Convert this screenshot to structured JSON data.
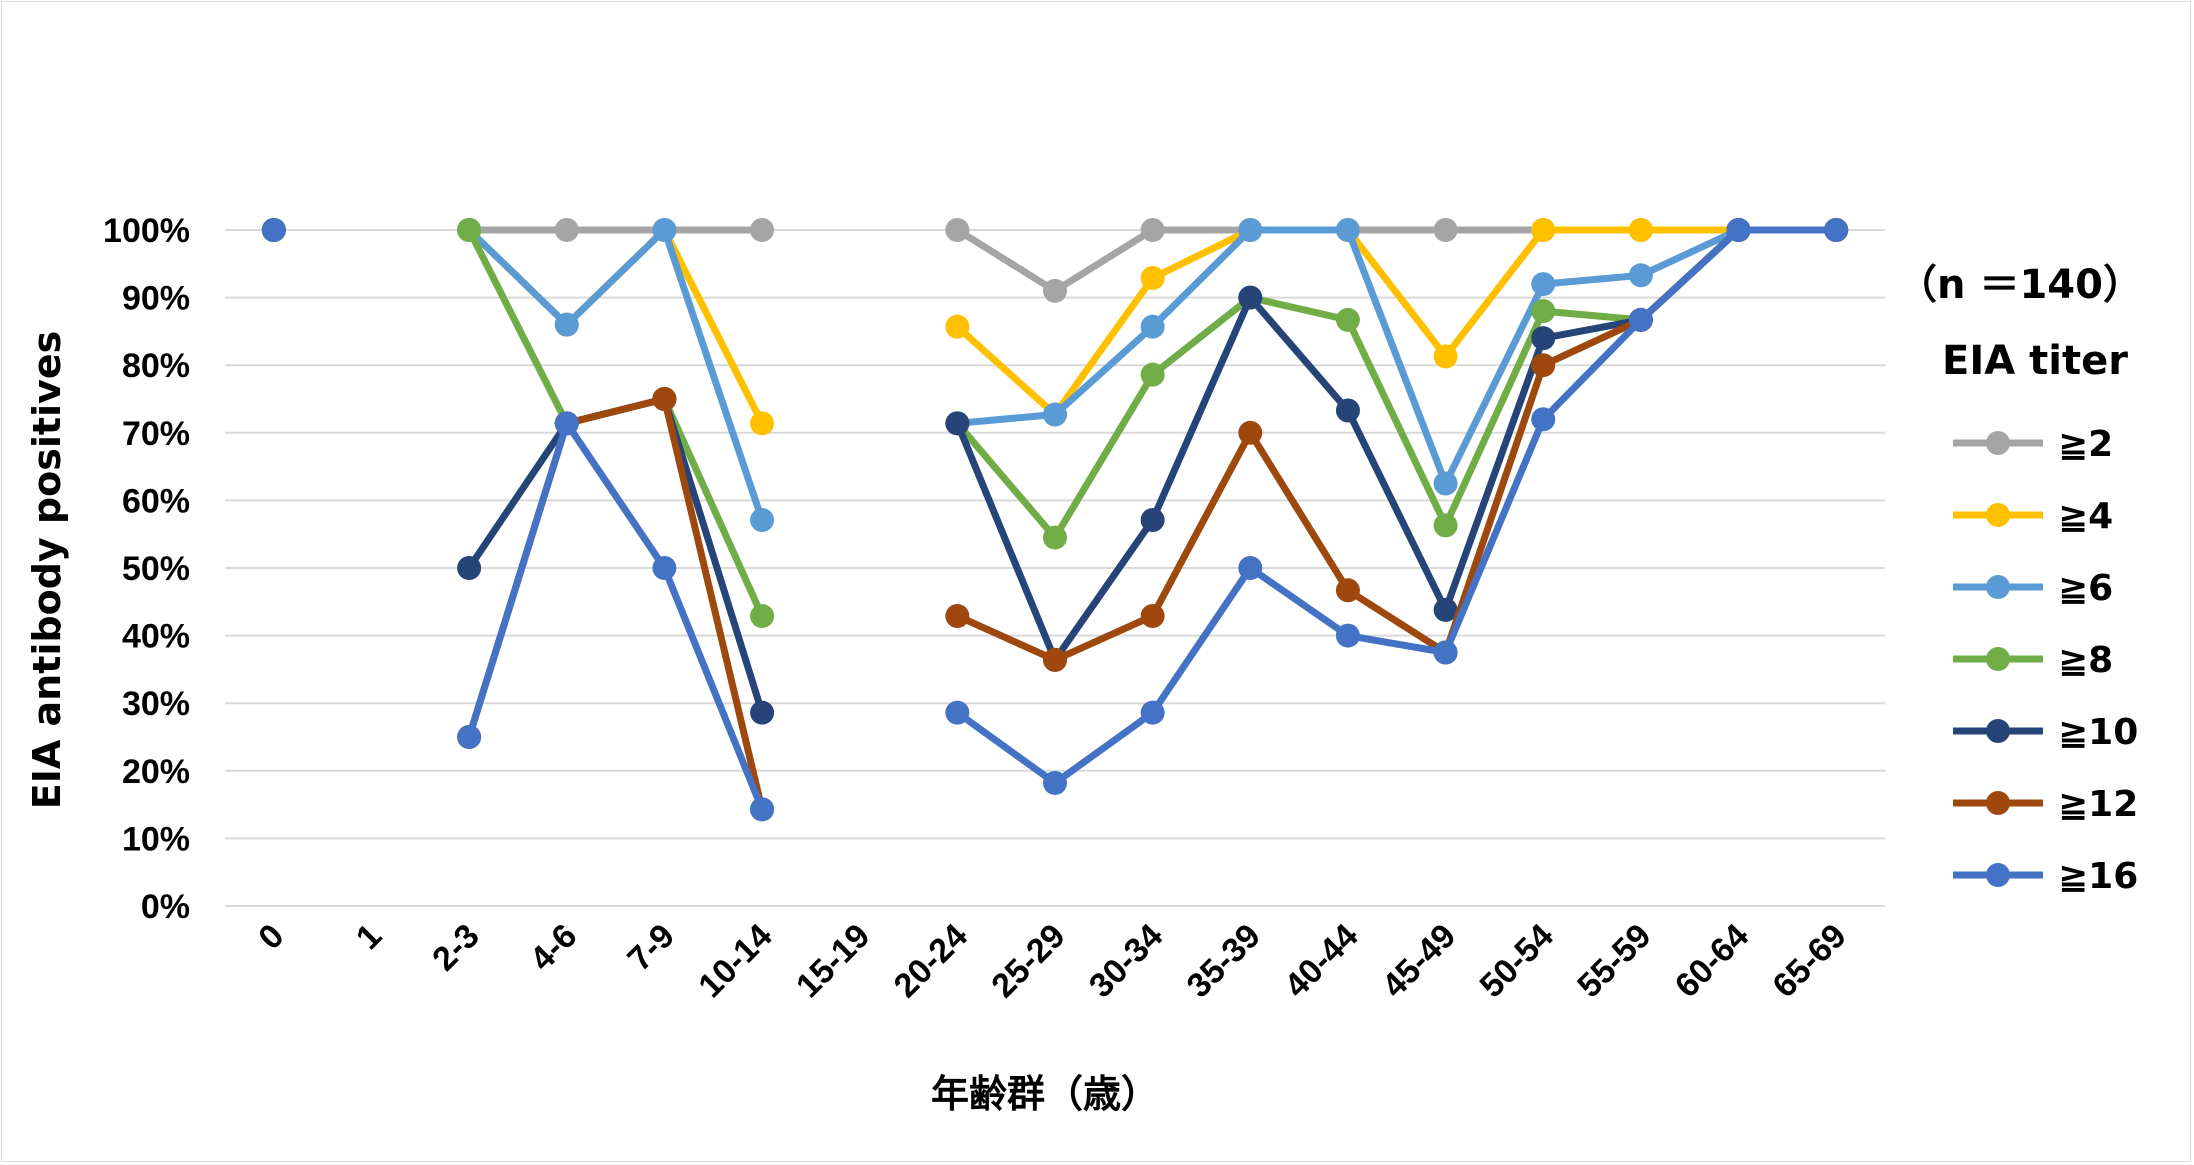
{
  "chart_data": {
    "type": "line",
    "title": "",
    "xlabel": "年齢群（歳）",
    "ylabel": "EIA antibody  positives",
    "ylim": [
      0,
      100
    ],
    "yticks": [
      "0%",
      "10%",
      "20%",
      "30%",
      "40%",
      "50%",
      "60%",
      "70%",
      "80%",
      "90%",
      "100%"
    ],
    "grid": true,
    "legend_position": "right",
    "annotation": "（n ＝140）",
    "legend_title": "EIA titer",
    "categories": [
      "0",
      "1",
      "2-3",
      "4-6",
      "7-9",
      "10-14",
      "15-19",
      "20-24",
      "25-29",
      "30-34",
      "35-39",
      "40-44",
      "45-49",
      "50-54",
      "55-59",
      "60-64",
      "65-69"
    ],
    "series": [
      {
        "name": "≧2",
        "color": "#a5a5a5",
        "values": [
          100,
          null,
          100,
          100,
          100,
          100,
          null,
          100,
          91,
          100,
          100,
          100,
          100,
          100,
          100,
          100,
          100
        ]
      },
      {
        "name": "≧4",
        "color": "#ffc000",
        "values": [
          100,
          null,
          100,
          86,
          100,
          71.4,
          null,
          85.7,
          72.7,
          92.9,
          100,
          100,
          81.3,
          100,
          100,
          100,
          100
        ]
      },
      {
        "name": "≧6",
        "color": "#5b9bd5",
        "values": [
          100,
          null,
          100,
          86,
          100,
          57.1,
          null,
          71.4,
          72.7,
          85.7,
          100,
          100,
          62.5,
          92,
          93.3,
          100,
          100
        ]
      },
      {
        "name": "≧8",
        "color": "#70ad47",
        "values": [
          100,
          null,
          100,
          71.4,
          75,
          42.9,
          null,
          71.4,
          54.5,
          78.6,
          90,
          86.7,
          56.3,
          88,
          86.7,
          100,
          100
        ]
      },
      {
        "name": "≧10",
        "color": "#264478",
        "values": [
          100,
          null,
          50,
          71.4,
          75,
          28.6,
          null,
          71.4,
          36.4,
          57.1,
          90,
          73.3,
          43.8,
          84,
          86.7,
          100,
          100
        ]
      },
      {
        "name": "≧12",
        "color": "#9e480e",
        "values": [
          100,
          null,
          25,
          71.4,
          75,
          14.3,
          null,
          42.9,
          36.4,
          42.9,
          70,
          46.7,
          37.5,
          80,
          86.7,
          100,
          100
        ]
      },
      {
        "name": "≧16",
        "color": "#4472c4",
        "values": [
          100,
          null,
          25,
          71.4,
          50,
          14.3,
          null,
          28.6,
          18.2,
          28.6,
          50,
          40,
          37.5,
          72,
          86.7,
          100,
          100
        ]
      }
    ]
  }
}
